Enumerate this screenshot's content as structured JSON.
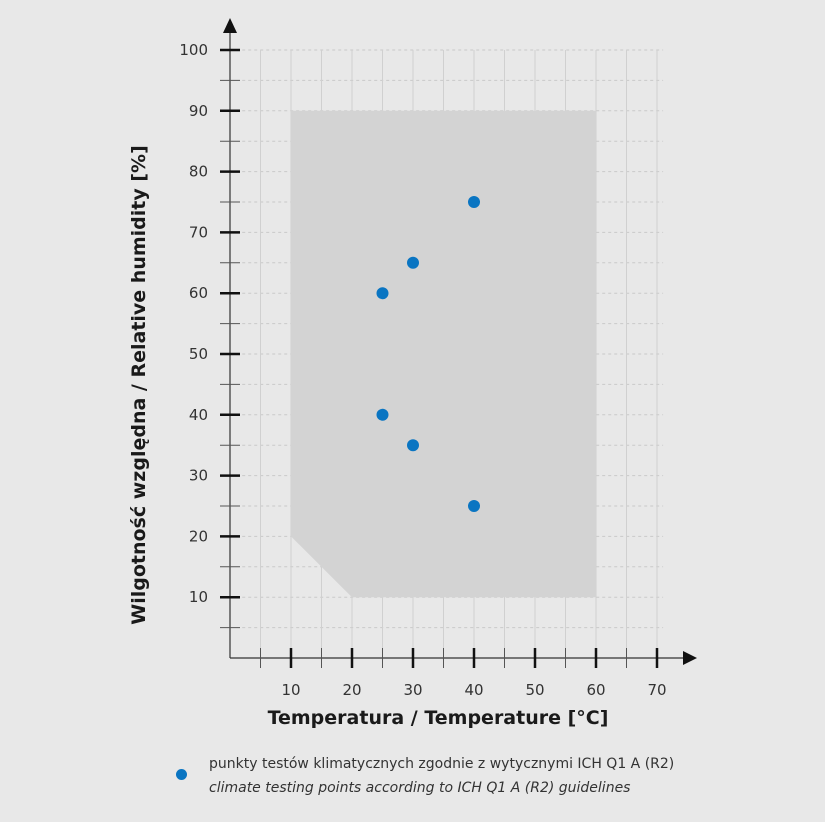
{
  "chart_data": {
    "type": "scatter",
    "xlabel": "Temperatura / Temperature [°C]",
    "ylabel": "Wilgotność względna / Relative humidity [%]",
    "xlim": [
      0,
      70
    ],
    "ylim": [
      0,
      100
    ],
    "xticks": [
      10,
      20,
      30,
      40,
      50,
      60,
      70
    ],
    "yticks": [
      10,
      20,
      30,
      40,
      50,
      60,
      70,
      80,
      90,
      100
    ],
    "grid": true,
    "shaded_region": [
      [
        10,
        90
      ],
      [
        60,
        90
      ],
      [
        60,
        10
      ],
      [
        20,
        10
      ],
      [
        10,
        20
      ]
    ],
    "series": [
      {
        "points": [
          [
            25,
            60
          ],
          [
            30,
            65
          ],
          [
            40,
            75
          ],
          [
            25,
            40
          ],
          [
            30,
            35
          ],
          [
            40,
            25
          ]
        ],
        "color": "#0a75c2"
      }
    ],
    "legend": {
      "placement": "bottom",
      "line1": "punkty testów klimatycznych zgodnie  z wytycznymi ICH Q1 A (R2)",
      "line2": "climate testing points according to ICH Q1 A (R2) guidelines"
    },
    "colors": {
      "background": "#e8e8e8",
      "region": "#d3d3d3",
      "point": "#0a75c2"
    }
  }
}
